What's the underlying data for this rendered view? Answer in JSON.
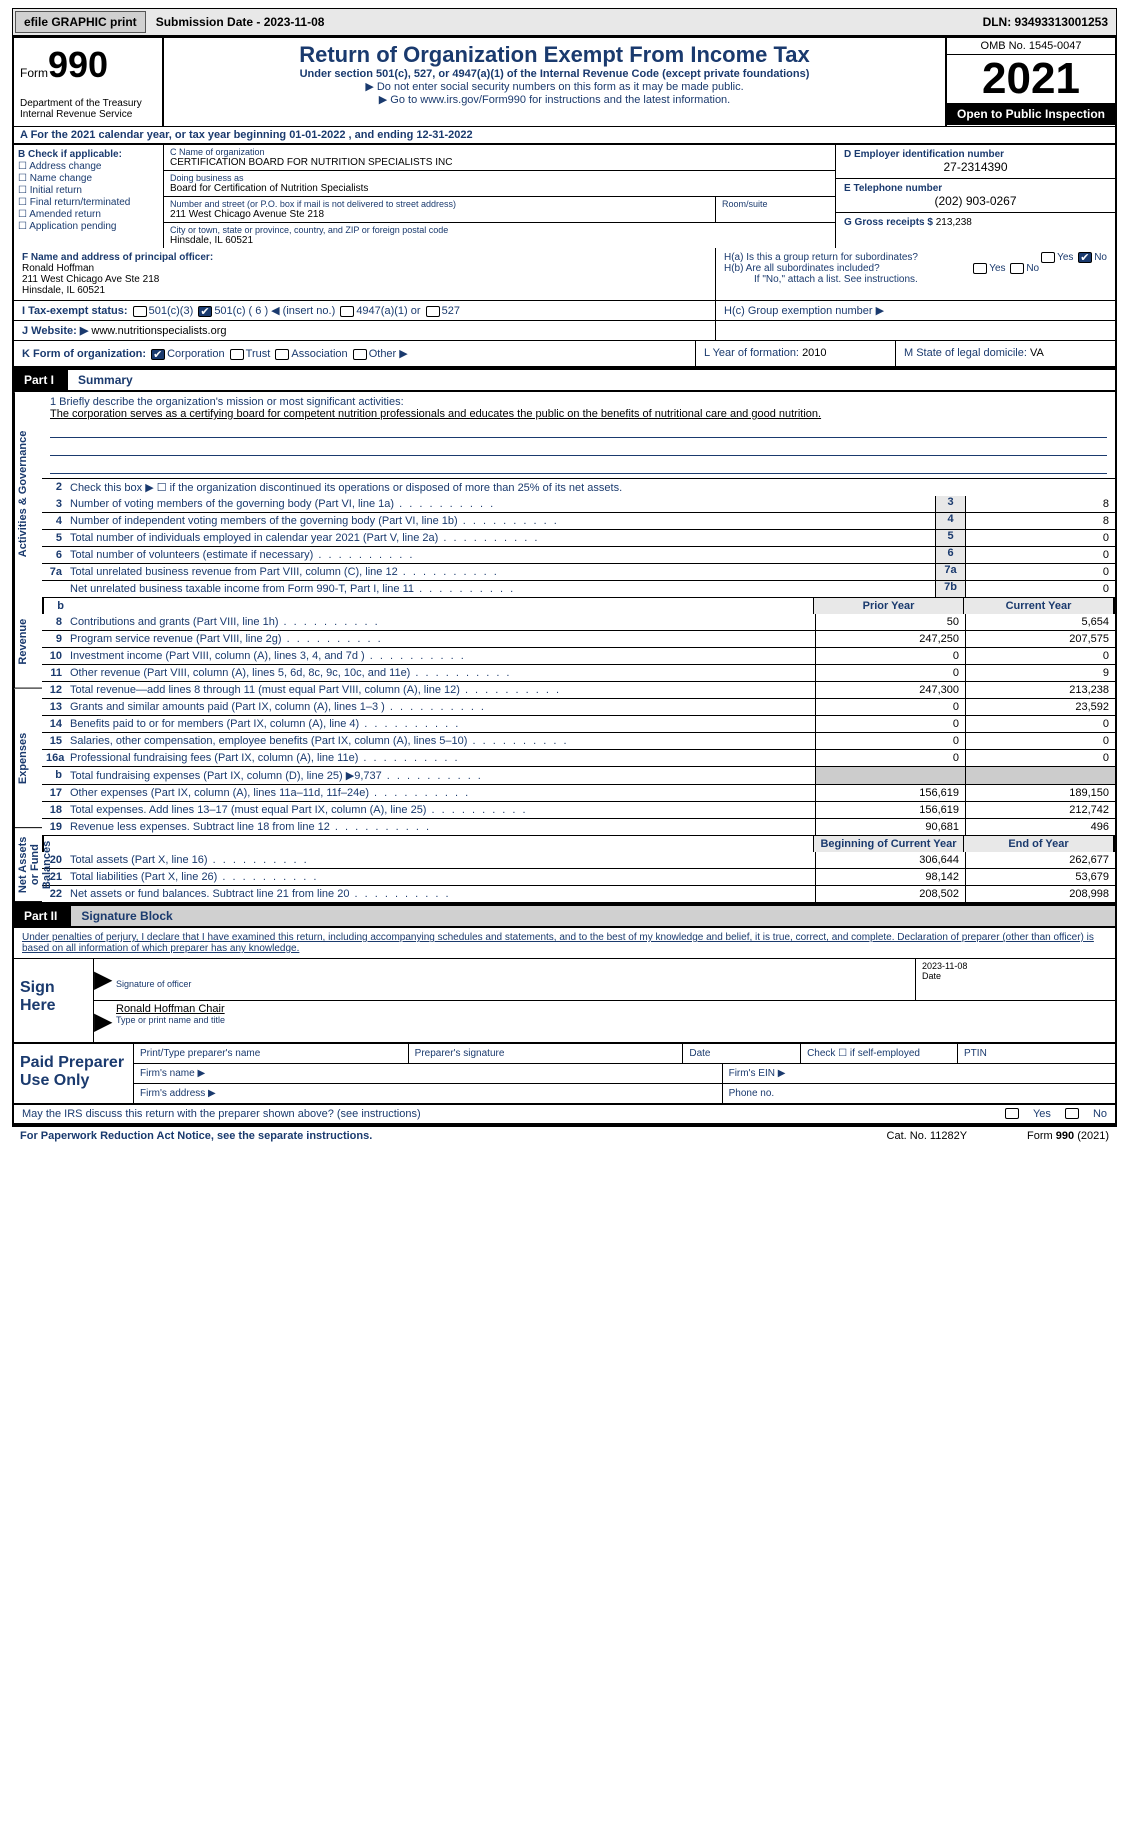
{
  "topbar": {
    "efile": "efile GRAPHIC print",
    "submission": "Submission Date - 2023-11-08",
    "dln": "DLN: 93493313001253"
  },
  "header": {
    "form_word": "Form",
    "form_no": "990",
    "dept": "Department of the Treasury Internal Revenue Service",
    "title": "Return of Organization Exempt From Income Tax",
    "sub": "Under section 501(c), 527, or 4947(a)(1) of the Internal Revenue Code (except private foundations)",
    "arrow1": "▶ Do not enter social security numbers on this form as it may be made public.",
    "arrow2_pre": "▶ Go to ",
    "arrow2_link": "www.irs.gov/Form990",
    "arrow2_post": " for instructions and the latest information.",
    "omb": "OMB No. 1545-0047",
    "year": "2021",
    "open": "Open to Public Inspection"
  },
  "calline": "A For the 2021 calendar year, or tax year beginning 01-01-2022   , and ending 12-31-2022",
  "B": {
    "lbl": "B Check if applicable:",
    "items": [
      "☐ Address change",
      "☐ Name change",
      "☐ Initial return",
      "☐ Final return/terminated",
      "☐ Amended return",
      "☐ Application pending"
    ]
  },
  "C": {
    "name_lbl": "C Name of organization",
    "name": "CERTIFICATION BOARD FOR NUTRITION SPECIALISTS INC",
    "dba_lbl": "Doing business as",
    "dba": "Board for Certification of Nutrition Specialists",
    "street_lbl": "Number and street (or P.O. box if mail is not delivered to street address)",
    "street": "211 West Chicago Avenue Ste 218",
    "room_lbl": "Room/suite",
    "city_lbl": "City or town, state or province, country, and ZIP or foreign postal code",
    "city": "Hinsdale, IL  60521"
  },
  "D": {
    "lbl": "D Employer identification number",
    "val": "27-2314390"
  },
  "E": {
    "lbl": "E Telephone number",
    "val": "(202) 903-0267"
  },
  "G": {
    "lbl": "G Gross receipts $",
    "val": "213,238"
  },
  "F": {
    "lbl": "F  Name and address of principal officer:",
    "name": "Ronald Hoffman",
    "addr1": "211 West Chicago Ave Ste 218",
    "addr2": "Hinsdale, IL  60521"
  },
  "H": {
    "a": "H(a)  Is this a group return for subordinates?",
    "b": "H(b)  Are all subordinates included?",
    "bnote": "If \"No,\" attach a list. See instructions.",
    "c": "H(c)  Group exemption number ▶"
  },
  "I": {
    "lbl": "I   Tax-exempt status:",
    "opts": [
      "501(c)(3)",
      "501(c) ( 6 ) ◀ (insert no.)",
      "4947(a)(1) or",
      "527"
    ],
    "checked": 1
  },
  "J": {
    "lbl": "J   Website: ▶",
    "val": "www.nutritionspecialists.org"
  },
  "K": {
    "lbl": "K Form of organization:",
    "opts": [
      "Corporation",
      "Trust",
      "Association",
      "Other ▶"
    ],
    "checked": 0
  },
  "L": {
    "lbl": "L Year of formation:",
    "val": "2010"
  },
  "M": {
    "lbl": "M State of legal domicile:",
    "val": "VA"
  },
  "part1": {
    "tag": "Part I",
    "ttl": "Summary"
  },
  "mission": {
    "lbl": "1   Briefly describe the organization's mission or most significant activities:",
    "txt": "The corporation serves as a certifying board for competent nutrition professionals and educates the public on the benefits of nutritional care and good nutrition."
  },
  "line2": "Check this box ▶ ☐ if the organization discontinued its operations or disposed of more than 25% of its net assets.",
  "act_rows": [
    {
      "n": "3",
      "t": "Number of voting members of the governing body (Part VI, line 1a)",
      "box": "3",
      "v": "8"
    },
    {
      "n": "4",
      "t": "Number of independent voting members of the governing body (Part VI, line 1b)",
      "box": "4",
      "v": "8"
    },
    {
      "n": "5",
      "t": "Total number of individuals employed in calendar year 2021 (Part V, line 2a)",
      "box": "5",
      "v": "0"
    },
    {
      "n": "6",
      "t": "Total number of volunteers (estimate if necessary)",
      "box": "6",
      "v": "0"
    },
    {
      "n": "7a",
      "t": "Total unrelated business revenue from Part VIII, column (C), line 12",
      "box": "7a",
      "v": "0"
    },
    {
      "n": "",
      "t": "Net unrelated business taxable income from Form 990-T, Part I, line 11",
      "box": "7b",
      "v": "0"
    }
  ],
  "col_hdr": {
    "b": "b",
    "prior": "Prior Year",
    "curr": "Current Year"
  },
  "rev_rows": [
    {
      "n": "8",
      "t": "Contributions and grants (Part VIII, line 1h)",
      "p": "50",
      "c": "5,654"
    },
    {
      "n": "9",
      "t": "Program service revenue (Part VIII, line 2g)",
      "p": "247,250",
      "c": "207,575"
    },
    {
      "n": "10",
      "t": "Investment income (Part VIII, column (A), lines 3, 4, and 7d )",
      "p": "0",
      "c": "0"
    },
    {
      "n": "11",
      "t": "Other revenue (Part VIII, column (A), lines 5, 6d, 8c, 9c, 10c, and 11e)",
      "p": "0",
      "c": "9"
    },
    {
      "n": "12",
      "t": "Total revenue—add lines 8 through 11 (must equal Part VIII, column (A), line 12)",
      "p": "247,300",
      "c": "213,238"
    }
  ],
  "exp_rows": [
    {
      "n": "13",
      "t": "Grants and similar amounts paid (Part IX, column (A), lines 1–3 )",
      "p": "0",
      "c": "23,592"
    },
    {
      "n": "14",
      "t": "Benefits paid to or for members (Part IX, column (A), line 4)",
      "p": "0",
      "c": "0"
    },
    {
      "n": "15",
      "t": "Salaries, other compensation, employee benefits (Part IX, column (A), lines 5–10)",
      "p": "0",
      "c": "0"
    },
    {
      "n": "16a",
      "t": "Professional fundraising fees (Part IX, column (A), line 11e)",
      "p": "0",
      "c": "0"
    },
    {
      "n": "b",
      "t": "Total fundraising expenses (Part IX, column (D), line 25) ▶9,737",
      "p": "shade",
      "c": "shade"
    },
    {
      "n": "17",
      "t": "Other expenses (Part IX, column (A), lines 11a–11d, 11f–24e)",
      "p": "156,619",
      "c": "189,150"
    },
    {
      "n": "18",
      "t": "Total expenses. Add lines 13–17 (must equal Part IX, column (A), line 25)",
      "p": "156,619",
      "c": "212,742"
    },
    {
      "n": "19",
      "t": "Revenue less expenses. Subtract line 18 from line 12",
      "p": "90,681",
      "c": "496"
    }
  ],
  "na_hdr": {
    "prior": "Beginning of Current Year",
    "curr": "End of Year"
  },
  "na_rows": [
    {
      "n": "20",
      "t": "Total assets (Part X, line 16)",
      "p": "306,644",
      "c": "262,677"
    },
    {
      "n": "21",
      "t": "Total liabilities (Part X, line 26)",
      "p": "98,142",
      "c": "53,679"
    },
    {
      "n": "22",
      "t": "Net assets or fund balances. Subtract line 21 from line 20",
      "p": "208,502",
      "c": "208,998"
    }
  ],
  "vtabs": {
    "a": "Activities & Governance",
    "r": "Revenue",
    "e": "Expenses",
    "n": "Net Assets or Fund Balances"
  },
  "part2": {
    "tag": "Part II",
    "ttl": "Signature Block"
  },
  "perjury": "Under penalties of perjury, I declare that I have examined this return, including accompanying schedules and statements, and to the best of my knowledge and belief, it is true, correct, and complete. Declaration of preparer (other than officer) is based on all information of which preparer has any knowledge.",
  "sign": {
    "here": "Sign Here",
    "sig_lbl": "Signature of officer",
    "date_lbl": "Date",
    "date": "2023-11-08",
    "name": "Ronald Hoffman  Chair",
    "name_lbl": "Type or print name and title"
  },
  "paid": {
    "here": "Paid Preparer Use Only",
    "c": [
      "Print/Type preparer's name",
      "Preparer's signature",
      "Date",
      "Check ☐ if self-employed",
      "PTIN"
    ],
    "firm": "Firm's name  ▶",
    "ein": "Firm's EIN ▶",
    "addr": "Firm's address ▶",
    "phone": "Phone no."
  },
  "may": "May the IRS discuss this return with the preparer shown above? (see instructions)",
  "foot": {
    "a": "For Paperwork Reduction Act Notice, see the separate instructions.",
    "b": "Cat. No. 11282Y",
    "c": "Form 990 (2021)"
  }
}
